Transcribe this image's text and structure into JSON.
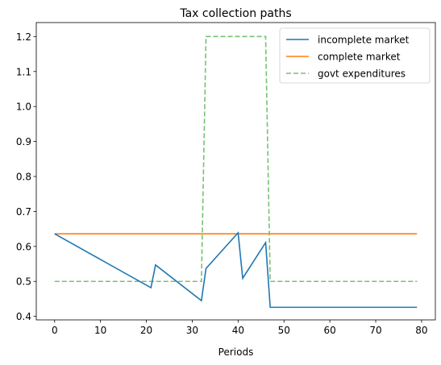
{
  "chart_data": {
    "type": "line",
    "title": "Tax collection paths",
    "xlabel": "Periods",
    "ylabel": "",
    "xlim": [
      -4,
      83
    ],
    "ylim": [
      0.39,
      1.24
    ],
    "xticks": [
      0,
      10,
      20,
      30,
      40,
      50,
      60,
      70,
      80
    ],
    "yticks": [
      0.4,
      0.5,
      0.6,
      0.7,
      0.8,
      0.9,
      1.0,
      1.1,
      1.2
    ],
    "legend_position": "top-right",
    "series": [
      {
        "name": "incomplete market",
        "color": "#1f77b4",
        "style": "solid",
        "x": [
          0,
          21,
          22,
          32,
          33,
          40,
          41,
          46,
          47,
          79
        ],
        "y": [
          0.636,
          0.482,
          0.547,
          0.445,
          0.537,
          0.639,
          0.509,
          0.611,
          0.426,
          0.426
        ]
      },
      {
        "name": "complete market",
        "color": "#ff7f0e",
        "style": "solid",
        "x": [
          0,
          79
        ],
        "y": [
          0.636,
          0.636
        ]
      },
      {
        "name": "govt expenditures",
        "color": "#77c172",
        "style": "dashed",
        "x": [
          0,
          32,
          33,
          46,
          47,
          79
        ],
        "y": [
          0.5,
          0.5,
          1.2,
          1.2,
          0.5,
          0.5
        ]
      }
    ]
  }
}
